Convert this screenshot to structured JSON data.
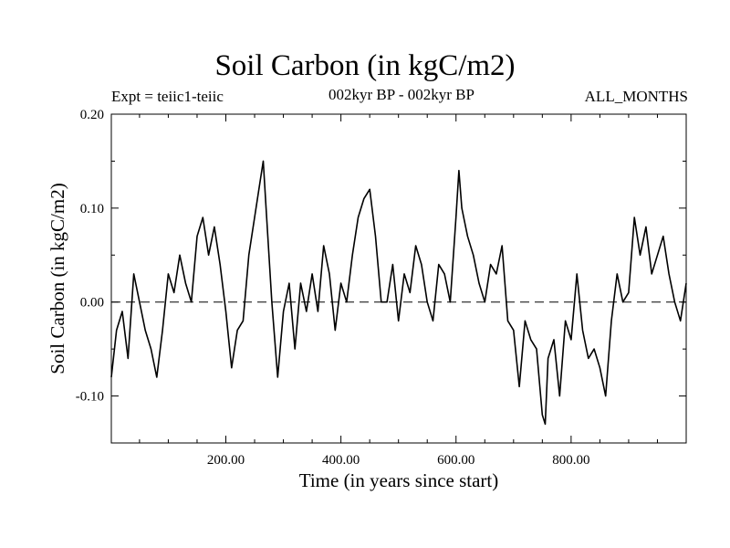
{
  "header": {
    "title": "Soil Carbon (in kgC/m2)",
    "expt": "Expt = teiic1-teiic",
    "subtitle": "002kyr BP - 002kyr BP",
    "months": "ALL_MONTHS"
  },
  "chart_data": {
    "type": "line",
    "xlabel": "Time (in years since start)",
    "ylabel": "Soil Carbon (in kgC/m2)",
    "xlim": [
      1,
      1000
    ],
    "ylim": [
      -0.15,
      0.2
    ],
    "x_ticks": [
      200,
      400,
      600,
      800
    ],
    "x_tick_labels": [
      "200.00",
      "400.00",
      "600.00",
      "800.00"
    ],
    "y_ticks": [
      -0.1,
      0.0,
      0.1,
      0.2
    ],
    "y_tick_labels": [
      "-0.10",
      "0.00",
      "0.10",
      "0.20"
    ],
    "zero_line": "dashed",
    "grid": false,
    "series": [
      {
        "x": [
          1,
          10,
          20,
          30,
          40,
          50,
          60,
          70,
          80,
          90,
          100,
          110,
          120,
          130,
          140,
          150,
          160,
          170,
          180,
          190,
          200,
          210,
          220,
          230,
          240,
          250,
          260,
          265,
          270,
          280,
          290,
          300,
          310,
          320,
          330,
          340,
          350,
          360,
          370,
          380,
          390,
          400,
          410,
          420,
          430,
          440,
          450,
          460,
          470,
          480,
          490,
          500,
          510,
          520,
          530,
          540,
          550,
          560,
          570,
          580,
          590,
          600,
          605,
          610,
          620,
          630,
          640,
          650,
          660,
          670,
          680,
          690,
          700,
          710,
          720,
          730,
          740,
          750,
          755,
          760,
          770,
          780,
          790,
          800,
          810,
          820,
          830,
          840,
          850,
          860,
          870,
          880,
          890,
          900,
          910,
          920,
          930,
          940,
          950,
          960,
          970,
          980,
          990,
          1000
        ],
        "y": [
          -0.08,
          -0.03,
          -0.01,
          -0.06,
          0.03,
          0.0,
          -0.03,
          -0.05,
          -0.08,
          -0.03,
          0.03,
          0.01,
          0.05,
          0.02,
          0.0,
          0.07,
          0.09,
          0.05,
          0.08,
          0.04,
          -0.01,
          -0.07,
          -0.03,
          -0.02,
          0.05,
          0.09,
          0.13,
          0.15,
          0.1,
          0.0,
          -0.08,
          -0.01,
          0.02,
          -0.05,
          0.02,
          -0.01,
          0.03,
          -0.01,
          0.06,
          0.03,
          -0.03,
          0.02,
          0.0,
          0.05,
          0.09,
          0.11,
          0.12,
          0.07,
          0.0,
          0.0,
          0.04,
          -0.02,
          0.03,
          0.01,
          0.06,
          0.04,
          0.0,
          -0.02,
          0.04,
          0.03,
          0.0,
          0.09,
          0.14,
          0.1,
          0.07,
          0.05,
          0.02,
          0.0,
          0.04,
          0.03,
          0.06,
          -0.02,
          -0.03,
          -0.09,
          -0.02,
          -0.04,
          -0.05,
          -0.12,
          -0.13,
          -0.06,
          -0.04,
          -0.1,
          -0.02,
          -0.04,
          0.03,
          -0.03,
          -0.06,
          -0.05,
          -0.07,
          -0.1,
          -0.02,
          0.03,
          0.0,
          0.01,
          0.09,
          0.05,
          0.08,
          0.03,
          0.05,
          0.07,
          0.03,
          0.0,
          -0.02,
          0.02
        ]
      }
    ]
  }
}
